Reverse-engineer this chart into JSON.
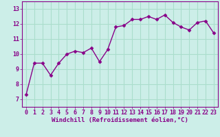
{
  "x": [
    0,
    1,
    2,
    3,
    4,
    5,
    6,
    7,
    8,
    9,
    10,
    11,
    12,
    13,
    14,
    15,
    16,
    17,
    18,
    19,
    20,
    21,
    22,
    23
  ],
  "y": [
    7.3,
    9.4,
    9.4,
    8.6,
    9.4,
    10.0,
    10.2,
    10.1,
    10.4,
    9.5,
    10.3,
    11.8,
    11.9,
    12.3,
    12.3,
    12.5,
    12.3,
    12.6,
    12.1,
    11.8,
    11.6,
    12.1,
    12.2,
    11.4
  ],
  "line_color": "#880088",
  "marker": "D",
  "markersize": 2.5,
  "bg_color": "#cceee8",
  "grid_color": "#aaddcc",
  "xlabel": "Windchill (Refroidissement éolien,°C)",
  "xlim": [
    -0.5,
    23.5
  ],
  "ylim": [
    6.5,
    13.5
  ],
  "yticks": [
    7,
    8,
    9,
    10,
    11,
    12,
    13
  ],
  "xticks": [
    0,
    1,
    2,
    3,
    4,
    5,
    6,
    7,
    8,
    9,
    10,
    11,
    12,
    13,
    14,
    15,
    16,
    17,
    18,
    19,
    20,
    21,
    22,
    23
  ],
  "xlabel_fontsize": 6.5,
  "tick_fontsize": 6,
  "linewidth": 1.0
}
